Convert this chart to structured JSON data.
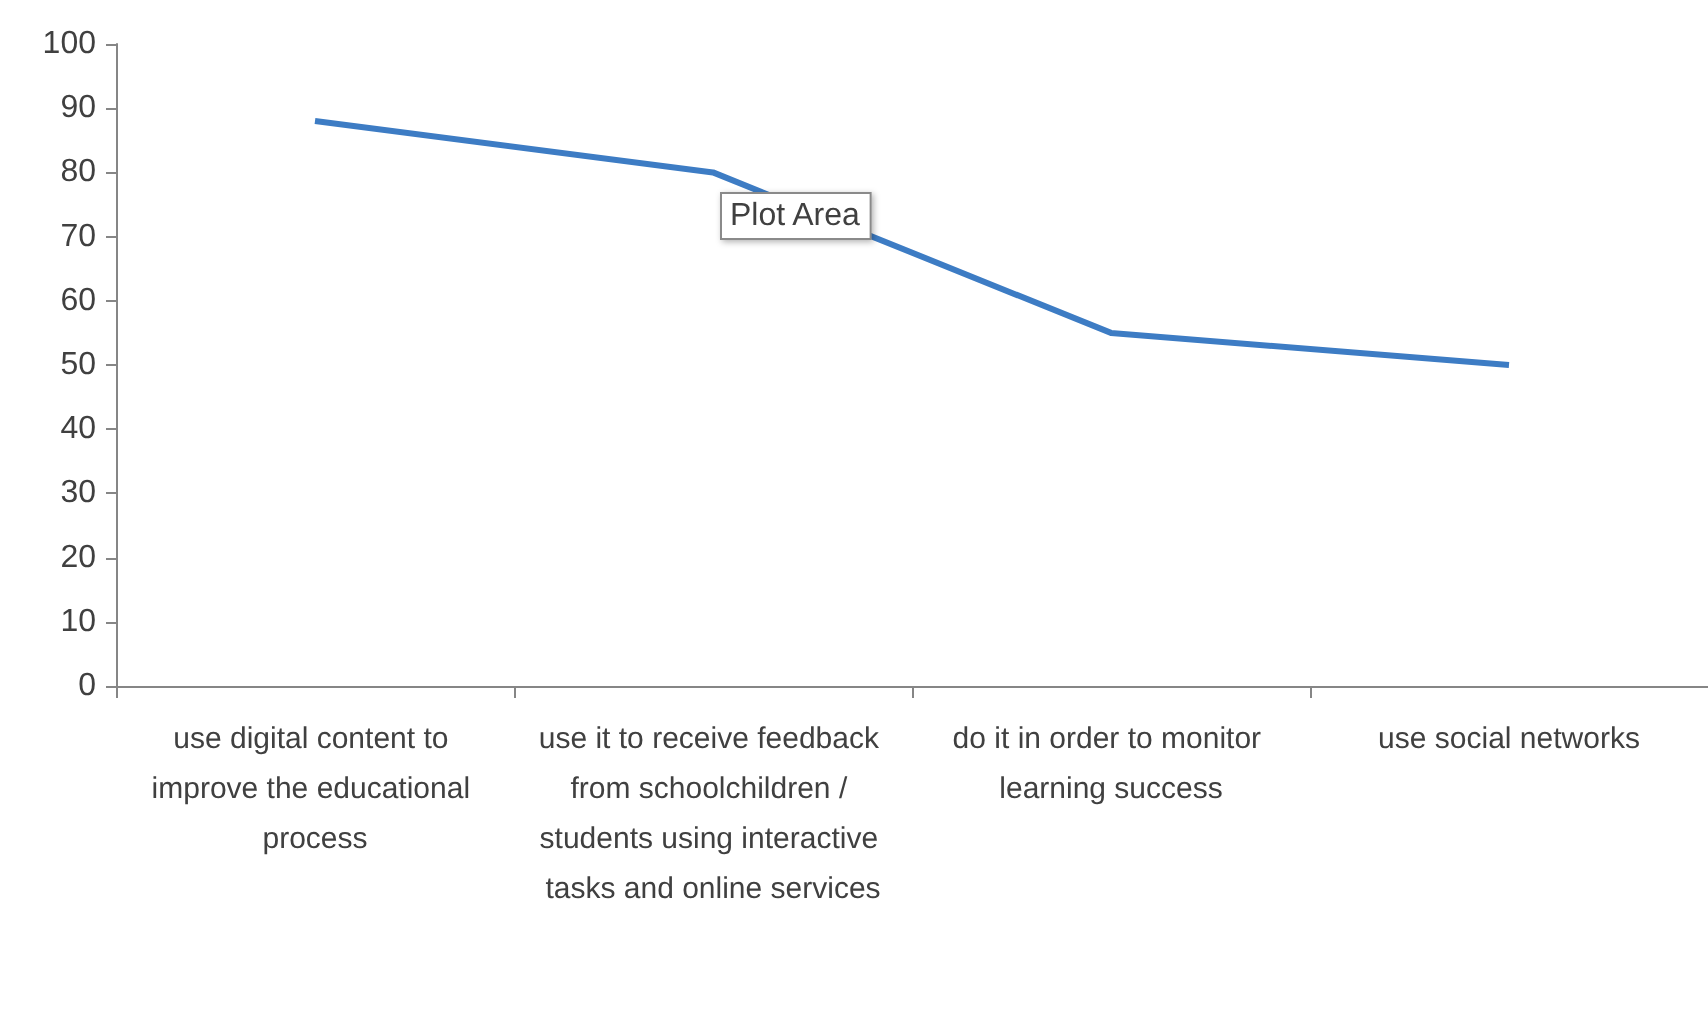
{
  "chart_data": {
    "type": "line",
    "categories": [
      "use digital content to improve the educational process",
      "use it to receive feedback from schoolchildren / students using interactive tasks and online services",
      "do it in order to monitor learning success",
      "use social networks"
    ],
    "series": [
      {
        "color": "#3d7cc4",
        "values": [
          88,
          80,
          55,
          50
        ]
      }
    ],
    "ylim": [
      0,
      100
    ],
    "yticks": [
      0,
      10,
      20,
      30,
      40,
      50,
      60,
      70,
      80,
      90,
      100
    ],
    "grid": false,
    "marker": "none",
    "line_style": "solid",
    "annotations": [
      "Plot Area"
    ]
  }
}
